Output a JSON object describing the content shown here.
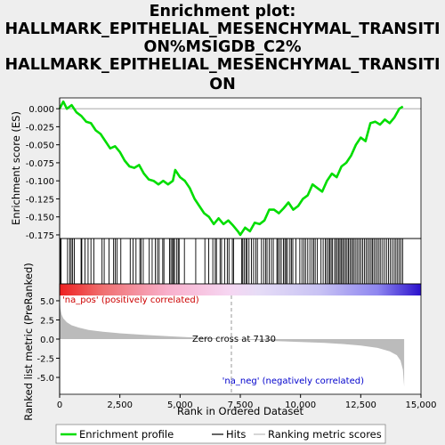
{
  "title_lines": [
    "Enrichment plot:",
    "HALLMARK_EPITHELIAL_MESENCHYMAL_TRANSITI",
    "ON%MSIGDB_C2%",
    "HALLMARK_EPITHELIAL_MESENCHYMAL_TRANSITI",
    "ON"
  ],
  "colors": {
    "es_line": "#00dd00",
    "hits": "#000000",
    "metric_fill": "#bbbbbb",
    "pos_label": "#cc0000",
    "neg_label": "#0000cc",
    "zero_line": "#999999",
    "background": "#eeeeee",
    "panel": "#ffffff"
  },
  "chart_data": {
    "type": "line",
    "xlabel": "Rank in Ordered Dataset",
    "xlim": [
      0,
      15000
    ],
    "x_ticks": [
      0,
      2500,
      5000,
      7500,
      10000,
      12500,
      15000
    ],
    "x_tick_labels": [
      "0",
      "2,500",
      "5,000",
      "7,500",
      "10,000",
      "12,500",
      "15,000"
    ],
    "top_panel": {
      "ylabel": "Enrichment score (ES)",
      "ylim": [
        -0.18,
        0.015
      ],
      "y_ticks": [
        0.0,
        -0.025,
        -0.05,
        -0.075,
        -0.1,
        -0.125,
        -0.15,
        -0.175
      ],
      "y_tick_labels": [
        "0.000",
        "-0.025",
        "-0.050",
        "-0.075",
        "-0.100",
        "-0.125",
        "-0.150",
        "-0.175"
      ],
      "series": [
        {
          "name": "Enrichment profile",
          "x": [
            0,
            150,
            300,
            500,
            700,
            900,
            1100,
            1300,
            1500,
            1700,
            1900,
            2100,
            2300,
            2500,
            2700,
            2900,
            3100,
            3300,
            3500,
            3700,
            3900,
            4100,
            4300,
            4500,
            4700,
            4800,
            5000,
            5200,
            5400,
            5600,
            5800,
            6000,
            6200,
            6400,
            6600,
            6800,
            7000,
            7200,
            7400,
            7500,
            7700,
            7900,
            8100,
            8300,
            8500,
            8700,
            8900,
            9100,
            9300,
            9500,
            9700,
            9900,
            10100,
            10300,
            10500,
            10700,
            10900,
            11100,
            11300,
            11500,
            11700,
            11900,
            12100,
            12300,
            12500,
            12700,
            12900,
            13100,
            13300,
            13500,
            13700,
            13900,
            14100,
            14250
          ],
          "y": [
            0.0,
            0.01,
            0.0,
            0.005,
            -0.005,
            -0.01,
            -0.018,
            -0.02,
            -0.03,
            -0.035,
            -0.045,
            -0.055,
            -0.052,
            -0.06,
            -0.072,
            -0.08,
            -0.082,
            -0.078,
            -0.09,
            -0.098,
            -0.1,
            -0.105,
            -0.1,
            -0.105,
            -0.1,
            -0.085,
            -0.095,
            -0.1,
            -0.11,
            -0.125,
            -0.135,
            -0.145,
            -0.15,
            -0.16,
            -0.152,
            -0.16,
            -0.155,
            -0.162,
            -0.17,
            -0.175,
            -0.165,
            -0.17,
            -0.158,
            -0.16,
            -0.155,
            -0.14,
            -0.14,
            -0.145,
            -0.138,
            -0.13,
            -0.14,
            -0.135,
            -0.125,
            -0.12,
            -0.105,
            -0.11,
            -0.115,
            -0.1,
            -0.09,
            -0.095,
            -0.08,
            -0.075,
            -0.065,
            -0.05,
            -0.04,
            -0.045,
            -0.02,
            -0.018,
            -0.022,
            -0.015,
            -0.02,
            -0.012,
            0.0,
            0.003
          ]
        }
      ]
    },
    "hits_panel": {
      "name": "Hits",
      "hit_positions": [
        30,
        60,
        330,
        420,
        480,
        540,
        610,
        890,
        920,
        1050,
        1180,
        1300,
        1420,
        1760,
        1850,
        2050,
        2240,
        2310,
        2380,
        2540,
        2930,
        3050,
        3170,
        3330,
        3380,
        3470,
        3720,
        3840,
        3970,
        4060,
        4130,
        4280,
        4330,
        4560,
        4620,
        4680,
        4730,
        4760,
        4850,
        4920,
        4960,
        5180,
        5650,
        6030,
        6190,
        6360,
        6460,
        6510,
        6660,
        6720,
        6850,
        6960,
        7030,
        7170,
        7220,
        7560,
        7600,
        7660,
        7730,
        7780,
        7860,
        7960,
        8050,
        8140,
        8210,
        8380,
        8470,
        8550,
        8610,
        8700,
        8790,
        8870,
        9020,
        9060,
        9130,
        9200,
        9290,
        9350,
        9400,
        9460,
        9560,
        9620,
        9680,
        9810,
        9970,
        10060,
        10140,
        10210,
        10300,
        10390,
        10480,
        10550,
        10610,
        10700,
        10850,
        10940,
        11030,
        11090,
        11160,
        11210,
        11270,
        11320,
        11410,
        11470,
        11530,
        11590,
        11640,
        11700,
        11750,
        11810,
        11870,
        11930,
        11990,
        12050,
        12110,
        12170,
        12230,
        12300,
        12370,
        12440,
        12510,
        12580,
        12650,
        12720,
        12790,
        12860,
        12930,
        12990,
        13050,
        13120,
        13190,
        13260,
        13330,
        13410,
        13490,
        13570,
        13650,
        13730,
        13810,
        13890,
        13960,
        14030,
        14100,
        14170,
        14240
      ]
    },
    "metric_panel": {
      "ylabel": "Ranked list metric (PreRanked)",
      "name": "Ranking metric scores",
      "ylim": [
        -7.2,
        7.2
      ],
      "y_ticks": [
        5.0,
        2.5,
        0.0,
        -2.5,
        -5.0
      ],
      "y_tick_labels": [
        "5.0",
        "2.5",
        "0.0",
        "-2.5",
        "-5.0"
      ],
      "x": [
        0,
        30,
        80,
        150,
        300,
        500,
        800,
        1200,
        1800,
        2500,
        3500,
        4500,
        5500,
        6500,
        7130,
        8000,
        9000,
        10000,
        11000,
        11800,
        12500,
        13200,
        13700,
        14000,
        14150,
        14250,
        14300
      ],
      "values": [
        5.5,
        4.0,
        3.2,
        2.7,
        2.2,
        1.8,
        1.5,
        1.2,
        0.95,
        0.75,
        0.55,
        0.38,
        0.22,
        0.08,
        0.0,
        -0.12,
        -0.25,
        -0.38,
        -0.5,
        -0.65,
        -0.85,
        -1.15,
        -1.6,
        -2.1,
        -2.8,
        -4.0,
        -6.2
      ],
      "zero_cross_rank": 7130,
      "zero_cross_label": "Zero cross at 7130",
      "pos_label": "'na_pos' (positively correlated)",
      "neg_label": "'na_neg' (negatively correlated)"
    },
    "legend": {
      "placement": "bottom",
      "entries": [
        "Enrichment profile",
        "Hits",
        "Ranking metric scores"
      ]
    },
    "grid": false
  }
}
